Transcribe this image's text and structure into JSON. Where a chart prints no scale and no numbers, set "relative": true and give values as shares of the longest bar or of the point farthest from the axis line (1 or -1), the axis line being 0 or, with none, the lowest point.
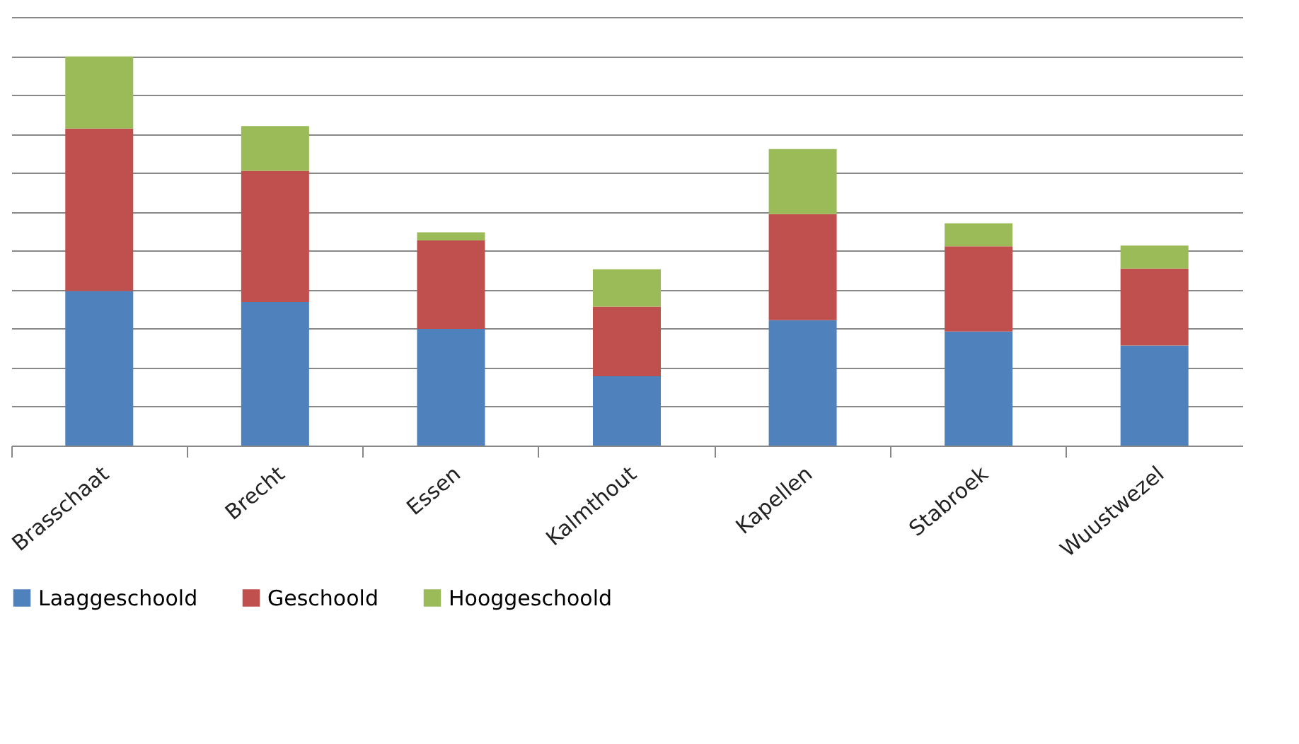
{
  "chart_data": {
    "type": "bar",
    "stacked": true,
    "relative": true,
    "grid": "y",
    "legend": "bottom",
    "categories": [
      "Brasschaat",
      "Brecht",
      "Essen",
      "Kalmthout",
      "Kapellen",
      "Stabroek",
      "Wuustwezel"
    ],
    "series": [
      {
        "name": "Laaggeschoold",
        "color": "#4f81bd",
        "values": [
          0.397,
          0.369,
          0.3,
          0.178,
          0.322,
          0.293,
          0.257
        ]
      },
      {
        "name": "Geschoold",
        "color": "#c0504d",
        "values": [
          0.418,
          0.337,
          0.227,
          0.179,
          0.273,
          0.219,
          0.198
        ]
      },
      {
        "name": "Hooggeschoold",
        "color": "#9bbb59",
        "values": [
          0.185,
          0.115,
          0.021,
          0.096,
          0.167,
          0.059,
          0.059
        ]
      }
    ]
  }
}
